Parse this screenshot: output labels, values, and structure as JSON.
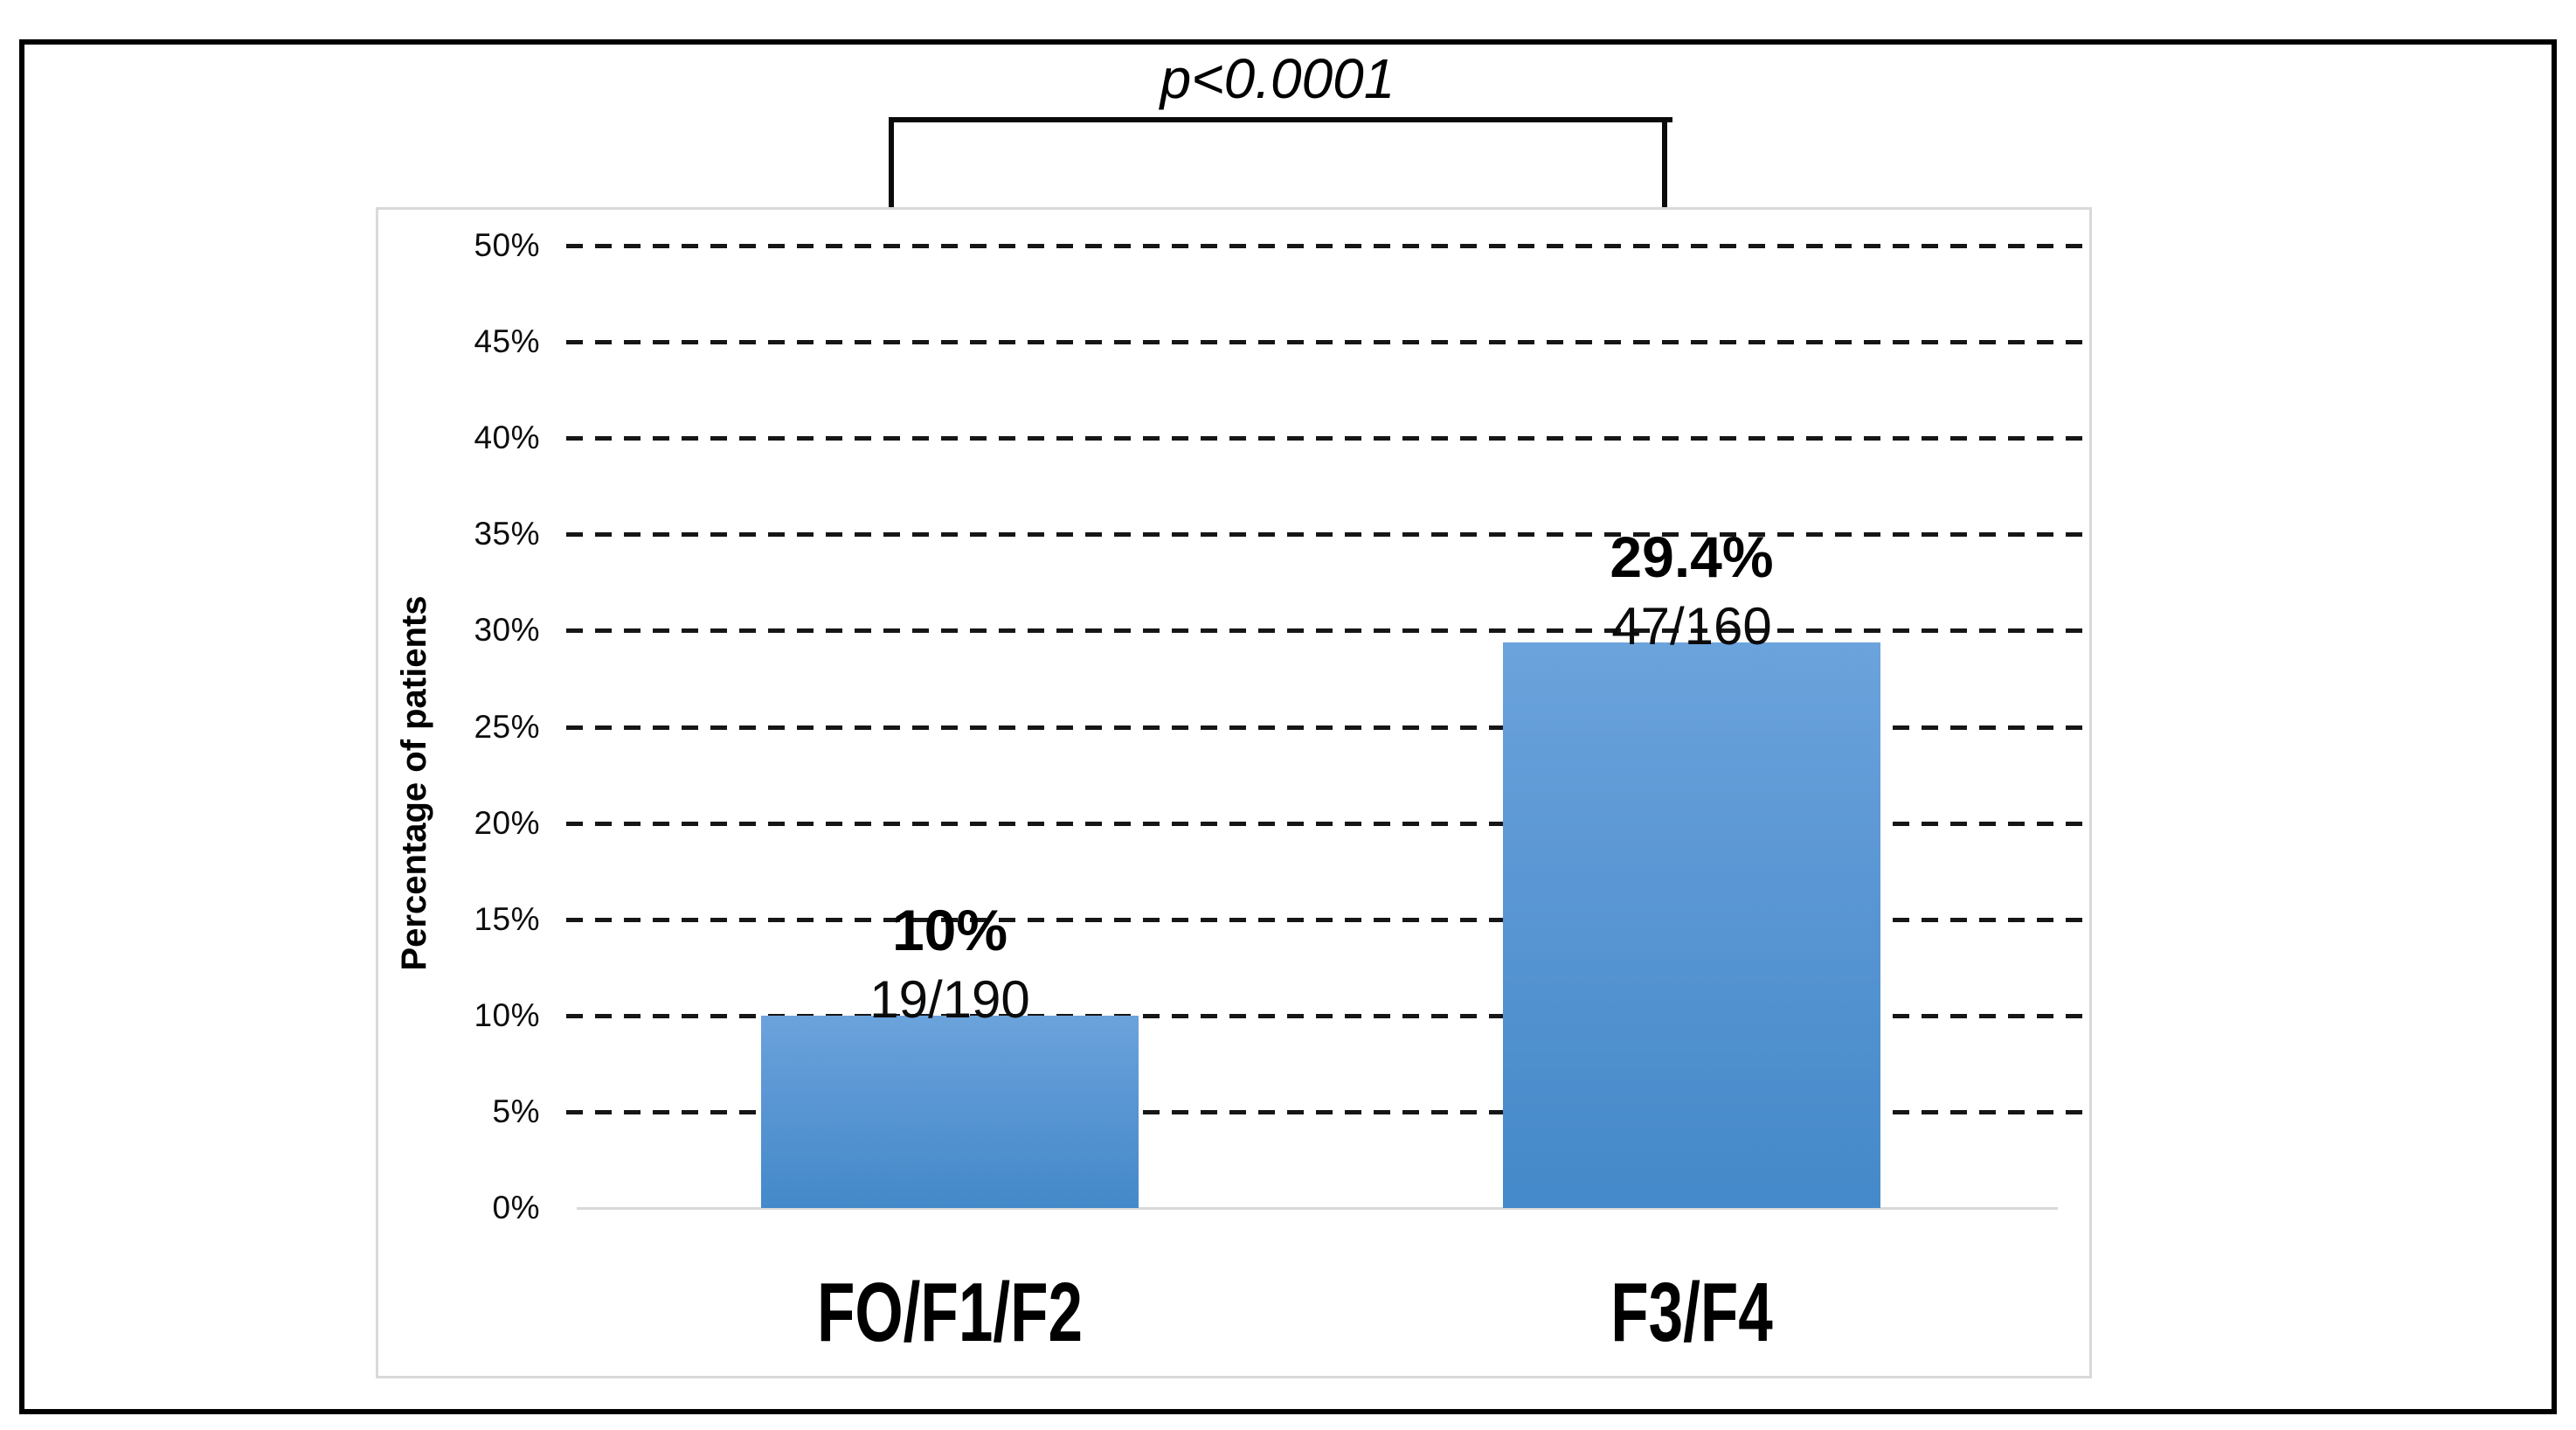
{
  "figure": {
    "p_value_label": "p<0.0001",
    "y_axis_title": "Percentage of patients"
  },
  "chart_data": {
    "type": "bar",
    "title": "",
    "xlabel": "",
    "ylabel": "Percentage of patients",
    "ylim": [
      0,
      50
    ],
    "ytick_step": 5,
    "ytick_labels": [
      "0%",
      "5%",
      "10%",
      "15%",
      "20%",
      "25%",
      "30%",
      "35%",
      "40%",
      "45%",
      "50%"
    ],
    "grid": "horizontal-dashed-black",
    "legend": "none",
    "categories": [
      "FO/F1/F2",
      "F3/F4"
    ],
    "values": [
      10,
      29.4
    ],
    "value_labels": [
      "10%",
      "29.4%"
    ],
    "fraction_labels": [
      "19/190",
      "47/160"
    ],
    "annotation": "p<0.0001",
    "bar_color_top": "#6BA3DC",
    "bar_color_bottom": "#4489C9",
    "gridline_color": "#161616",
    "baseline_color": "#D9D9D9"
  }
}
